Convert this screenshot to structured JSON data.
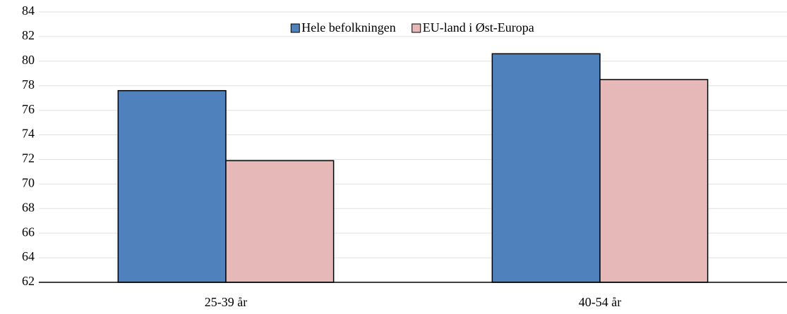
{
  "chart_data": {
    "type": "bar",
    "categories": [
      "25-39 år",
      "40-54 år"
    ],
    "series": [
      {
        "name": "Hele befolkningen",
        "color": "#4f81bd",
        "values": [
          77.6,
          80.6
        ]
      },
      {
        "name": "EU-land i Øst-Europa",
        "color": "#e6b9b8",
        "values": [
          71.9,
          78.5
        ]
      }
    ],
    "ylim": [
      62,
      84
    ],
    "yticks": [
      62,
      64,
      66,
      68,
      70,
      72,
      74,
      76,
      78,
      80,
      82,
      84
    ],
    "grid": true,
    "legend": "top"
  }
}
